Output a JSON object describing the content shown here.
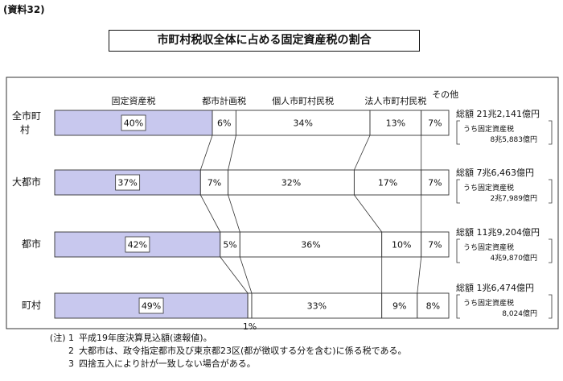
{
  "header": {
    "doc_label": "(資料32)",
    "title": "市町村税収全体に占める固定資産税の割合"
  },
  "chart_data": {
    "type": "bar",
    "stacked": true,
    "orientation": "horizontal",
    "categories": [
      "全市町村",
      "大都市",
      "都市",
      "町村"
    ],
    "series": [
      {
        "name": "固定資産税",
        "values": [
          40,
          37,
          42,
          49
        ],
        "labels": [
          "40%",
          "37%",
          "42%",
          "49%"
        ]
      },
      {
        "name": "都市計画税",
        "values": [
          6,
          7,
          5,
          1
        ],
        "labels": [
          "6%",
          "7%",
          "5%",
          "1%"
        ]
      },
      {
        "name": "個人市町村民税",
        "values": [
          34,
          32,
          36,
          33
        ],
        "labels": [
          "34%",
          "32%",
          "36%",
          "33%"
        ]
      },
      {
        "name": "法人市町村民税",
        "values": [
          13,
          17,
          10,
          9
        ],
        "labels": [
          "13%",
          "17%",
          "10%",
          "9%"
        ]
      },
      {
        "name": "その他",
        "values": [
          7,
          7,
          7,
          8
        ],
        "labels": [
          "7%",
          "7%",
          "7%",
          "8%"
        ]
      }
    ],
    "totals": [
      {
        "total": "総額 21兆2,141億円",
        "fixed_label": "うち固定資産税",
        "fixed_value": "8兆5,883億円"
      },
      {
        "total": "総額 7兆6,463億円",
        "fixed_label": "うち固定資産税",
        "fixed_value": "2兆7,989億円"
      },
      {
        "total": "総額 11兆9,204億円",
        "fixed_label": "うち固定資産税",
        "fixed_value": "4兆9,870億円"
      },
      {
        "total": "総額 1兆6,474億円",
        "fixed_label": "うち固定資産税",
        "fixed_value": "8,024億円"
      }
    ],
    "highlight_color": "#c8c8ee",
    "xlim": [
      0,
      100
    ]
  },
  "notes": [
    {
      "label": "(注) 1",
      "text": "平成19年度決算見込額(速報値)。"
    },
    {
      "label": "2",
      "text": "大都市は、政令指定都市及び東京都23区(都が徴収する分を含む)に係る税である。"
    },
    {
      "label": "3",
      "text": "四捨五入により計が一致しない場合がある。"
    }
  ]
}
